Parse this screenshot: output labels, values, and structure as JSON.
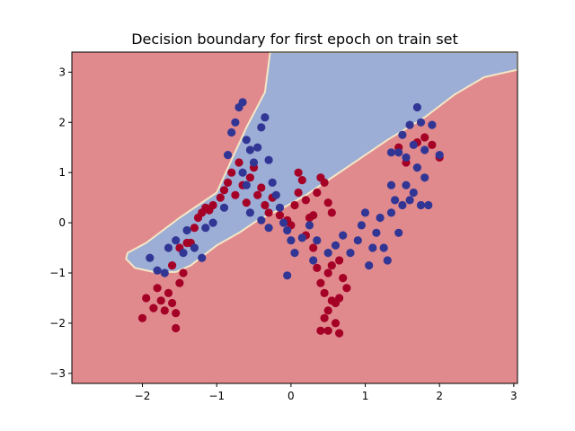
{
  "chart_data": {
    "type": "scatter",
    "title": "Decision boundary for first epoch on train set",
    "xlabel": "",
    "ylabel": "",
    "xlim": [
      -2.95,
      3.05
    ],
    "ylim": [
      -3.2,
      3.4
    ],
    "xticks": [
      -2,
      -1,
      0,
      1,
      2,
      3
    ],
    "yticks": [
      -3,
      -2,
      -1,
      0,
      1,
      2,
      3
    ],
    "xtick_labels": [
      "−2",
      "−1",
      "0",
      "1",
      "2",
      "3"
    ],
    "ytick_labels": [
      "−3",
      "−2",
      "−1",
      "0",
      "1",
      "2",
      "3"
    ],
    "grid": false,
    "colors": {
      "class0_region": "#e08a8e",
      "class1_region": "#9cadd6",
      "class0_points": "#a50026",
      "class1_points": "#313695",
      "boundary_line": "#f4e7c5"
    },
    "decision_boundary": {
      "class1_region_polygon": [
        [
          -2.2,
          -0.6
        ],
        [
          -1.95,
          -0.4
        ],
        [
          -1.5,
          0.1
        ],
        [
          -1.0,
          0.6
        ],
        [
          -0.8,
          1.25
        ],
        [
          -0.6,
          1.9
        ],
        [
          -0.35,
          2.6
        ],
        [
          -0.28,
          3.4
        ],
        [
          3.05,
          3.4
        ],
        [
          3.05,
          3.05
        ],
        [
          2.6,
          2.9
        ],
        [
          2.2,
          2.55
        ],
        [
          1.8,
          2.1
        ],
        [
          1.3,
          1.65
        ],
        [
          0.95,
          1.3
        ],
        [
          0.6,
          0.95
        ],
        [
          0.2,
          0.55
        ],
        [
          -0.1,
          0.3
        ],
        [
          -0.45,
          0.05
        ],
        [
          -0.7,
          -0.2
        ],
        [
          -1.0,
          -0.45
        ],
        [
          -1.35,
          -0.85
        ],
        [
          -1.55,
          -0.98
        ],
        [
          -1.85,
          -0.98
        ],
        [
          -2.1,
          -0.9
        ],
        [
          -2.22,
          -0.72
        ]
      ]
    },
    "series": [
      {
        "class": 0,
        "points": [
          [
            -2.0,
            -1.9
          ],
          [
            -1.95,
            -1.5
          ],
          [
            -1.85,
            -1.7
          ],
          [
            -1.8,
            -1.3
          ],
          [
            -1.75,
            -1.55
          ],
          [
            -1.7,
            -1.75
          ],
          [
            -1.65,
            -1.4
          ],
          [
            -1.6,
            -1.6
          ],
          [
            -1.55,
            -2.1
          ],
          [
            -1.55,
            -1.8
          ],
          [
            -1.6,
            -0.85
          ],
          [
            -1.5,
            -1.2
          ],
          [
            -1.45,
            -1.0
          ],
          [
            -1.5,
            -0.5
          ],
          [
            -1.4,
            -0.4
          ],
          [
            -1.35,
            -0.4
          ],
          [
            -1.3,
            -0.1
          ],
          [
            -1.25,
            0.1
          ],
          [
            -1.2,
            0.2
          ],
          [
            -1.15,
            0.3
          ],
          [
            -1.1,
            0.25
          ],
          [
            -1.05,
            0.35
          ],
          [
            -0.95,
            0.5
          ],
          [
            -0.9,
            0.65
          ],
          [
            -0.85,
            0.8
          ],
          [
            -0.8,
            1.0
          ],
          [
            -0.75,
            0.55
          ],
          [
            -0.7,
            1.2
          ],
          [
            -0.65,
            0.75
          ],
          [
            -0.6,
            0.4
          ],
          [
            -0.55,
            0.9
          ],
          [
            -0.5,
            1.1
          ],
          [
            -0.45,
            0.55
          ],
          [
            -0.4,
            0.7
          ],
          [
            -0.35,
            0.35
          ],
          [
            -0.3,
            0.2
          ],
          [
            -0.25,
            0.5
          ],
          [
            -0.15,
            0.15
          ],
          [
            -0.05,
            0.05
          ],
          [
            0.0,
            -0.05
          ],
          [
            0.05,
            0.35
          ],
          [
            0.1,
            0.6
          ],
          [
            0.1,
            1.0
          ],
          [
            0.15,
            0.85
          ],
          [
            0.2,
            0.45
          ],
          [
            0.25,
            0.1
          ],
          [
            0.3,
            0.15
          ],
          [
            0.35,
            0.6
          ],
          [
            0.4,
            0.9
          ],
          [
            0.45,
            0.8
          ],
          [
            0.5,
            0.4
          ],
          [
            0.55,
            0.2
          ],
          [
            0.2,
            -0.25
          ],
          [
            0.3,
            -0.5
          ],
          [
            0.35,
            -0.9
          ],
          [
            0.4,
            -1.2
          ],
          [
            0.45,
            -1.4
          ],
          [
            0.5,
            -1.0
          ],
          [
            0.55,
            -1.55
          ],
          [
            0.5,
            -1.75
          ],
          [
            0.45,
            -1.9
          ],
          [
            0.6,
            -1.6
          ],
          [
            0.6,
            -2.0
          ],
          [
            0.65,
            -2.2
          ],
          [
            0.5,
            -2.15
          ],
          [
            0.4,
            -2.15
          ],
          [
            0.55,
            -0.85
          ],
          [
            0.65,
            -0.75
          ],
          [
            0.7,
            -1.1
          ],
          [
            0.65,
            -1.5
          ],
          [
            0.75,
            -1.3
          ],
          [
            1.7,
            1.6
          ],
          [
            1.8,
            1.7
          ],
          [
            1.9,
            1.55
          ],
          [
            2.0,
            1.3
          ],
          [
            1.55,
            1.2
          ],
          [
            1.45,
            1.5
          ]
        ]
      },
      {
        "class": 1,
        "points": [
          [
            -1.9,
            -0.7
          ],
          [
            -1.8,
            -0.95
          ],
          [
            -1.7,
            -1.0
          ],
          [
            -1.65,
            -0.5
          ],
          [
            -1.55,
            -0.35
          ],
          [
            -1.45,
            -0.6
          ],
          [
            -1.4,
            -0.15
          ],
          [
            -1.3,
            -0.5
          ],
          [
            -1.2,
            -0.7
          ],
          [
            -1.15,
            -0.1
          ],
          [
            -1.05,
            0.0
          ],
          [
            -0.9,
            0.3
          ],
          [
            -0.85,
            1.35
          ],
          [
            -0.8,
            1.8
          ],
          [
            -0.75,
            2.0
          ],
          [
            -0.7,
            2.3
          ],
          [
            -0.65,
            2.4
          ],
          [
            -0.6,
            1.65
          ],
          [
            -0.55,
            1.45
          ],
          [
            -0.5,
            1.2
          ],
          [
            -0.45,
            1.5
          ],
          [
            -0.4,
            1.9
          ],
          [
            -0.35,
            2.1
          ],
          [
            -0.3,
            1.25
          ],
          [
            -0.25,
            0.8
          ],
          [
            -0.2,
            0.55
          ],
          [
            -0.15,
            0.3
          ],
          [
            -0.1,
            0.0
          ],
          [
            -0.05,
            -0.15
          ],
          [
            0.0,
            -0.35
          ],
          [
            0.05,
            -0.6
          ],
          [
            0.15,
            -0.3
          ],
          [
            0.25,
            -0.05
          ],
          [
            -0.3,
            -0.1
          ],
          [
            -0.4,
            0.05
          ],
          [
            -0.55,
            0.2
          ],
          [
            -0.6,
            0.75
          ],
          [
            -0.65,
            1.0
          ],
          [
            -0.05,
            -1.05
          ],
          [
            0.3,
            -0.75
          ],
          [
            0.35,
            -0.35
          ],
          [
            0.5,
            -0.6
          ],
          [
            0.6,
            -0.45
          ],
          [
            0.7,
            -0.25
          ],
          [
            0.8,
            -0.6
          ],
          [
            0.9,
            -0.35
          ],
          [
            0.95,
            -0.05
          ],
          [
            1.0,
            0.2
          ],
          [
            1.05,
            -0.85
          ],
          [
            1.1,
            -0.5
          ],
          [
            1.15,
            -0.2
          ],
          [
            1.2,
            0.1
          ],
          [
            1.25,
            -0.5
          ],
          [
            1.3,
            -0.75
          ],
          [
            1.35,
            0.2
          ],
          [
            1.4,
            0.45
          ],
          [
            1.45,
            -0.2
          ],
          [
            1.5,
            0.35
          ],
          [
            1.55,
            0.75
          ],
          [
            1.6,
            0.45
          ],
          [
            1.65,
            0.6
          ],
          [
            1.7,
            1.1
          ],
          [
            1.75,
            0.35
          ],
          [
            1.8,
            0.9
          ],
          [
            1.85,
            0.35
          ],
          [
            1.9,
            1.95
          ],
          [
            1.75,
            2.0
          ],
          [
            1.7,
            2.3
          ],
          [
            1.6,
            1.95
          ],
          [
            1.55,
            1.3
          ],
          [
            1.45,
            1.4
          ],
          [
            1.35,
            1.4
          ],
          [
            1.5,
            1.75
          ],
          [
            1.8,
            1.45
          ],
          [
            1.65,
            1.55
          ],
          [
            2.0,
            1.35
          ],
          [
            1.35,
            0.75
          ]
        ]
      }
    ]
  }
}
